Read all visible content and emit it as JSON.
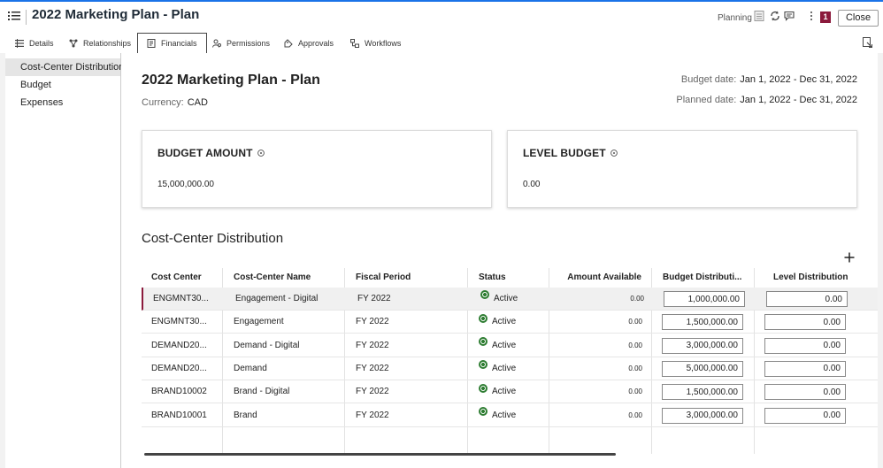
{
  "header": {
    "title": "2022 Marketing Plan - Plan",
    "planning_label": "Planning",
    "badge_count": "1",
    "close_label": "Close"
  },
  "tabs": [
    {
      "label": "Details",
      "icon": "list-icon"
    },
    {
      "label": "Relationships",
      "icon": "relationships-icon"
    },
    {
      "label": "Financials",
      "icon": "financials-icon",
      "active": true
    },
    {
      "label": "Permissions",
      "icon": "permissions-icon"
    },
    {
      "label": "Approvals",
      "icon": "approvals-icon"
    },
    {
      "label": "Workflows",
      "icon": "workflows-icon"
    }
  ],
  "sidebar": {
    "items": [
      {
        "label": "Cost-Center Distribution",
        "selected": true
      },
      {
        "label": "Budget"
      },
      {
        "label": "Expenses"
      }
    ]
  },
  "main": {
    "title": "2022 Marketing Plan - Plan",
    "currency_label": "Currency:",
    "currency_value": "CAD",
    "budget_date_label": "Budget date:",
    "budget_date_value": "Jan 1, 2022 - Dec 31, 2022",
    "planned_date_label": "Planned date:",
    "planned_date_value": "Jan 1, 2022 - Dec 31, 2022",
    "cards": [
      {
        "label": "BUDGET AMOUNT",
        "value": "15,000,000.00"
      },
      {
        "label": "LEVEL BUDGET",
        "value": "0.00"
      }
    ],
    "section_title": "Cost-Center Distribution"
  },
  "table": {
    "columns": [
      "Cost Center",
      "Cost-Center Name",
      "Fiscal Period",
      "Status",
      "Amount Available",
      "Budget Distributi...",
      "Level Distribution"
    ],
    "rows": [
      {
        "cost_center": "ENGMNT30...",
        "name": "Engagement - Digital",
        "period": "FY 2022",
        "status": "Active",
        "available": "0.00",
        "budget": "1,000,000.00",
        "level": "0.00"
      },
      {
        "cost_center": "ENGMNT30...",
        "name": "Engagement",
        "period": "FY 2022",
        "status": "Active",
        "available": "0.00",
        "budget": "1,500,000.00",
        "level": "0.00"
      },
      {
        "cost_center": "DEMAND20...",
        "name": "Demand - Digital",
        "period": "FY 2022",
        "status": "Active",
        "available": "0.00",
        "budget": "3,000,000.00",
        "level": "0.00"
      },
      {
        "cost_center": "DEMAND20...",
        "name": "Demand",
        "period": "FY 2022",
        "status": "Active",
        "available": "0.00",
        "budget": "5,000,000.00",
        "level": "0.00"
      },
      {
        "cost_center": "BRAND10002",
        "name": "Brand - Digital",
        "period": "FY 2022",
        "status": "Active",
        "available": "0.00",
        "budget": "1,500,000.00",
        "level": "0.00"
      },
      {
        "cost_center": "BRAND10001",
        "name": "Brand",
        "period": "FY 2022",
        "status": "Active",
        "available": "0.00",
        "budget": "3,000,000.00",
        "level": "0.00"
      }
    ]
  },
  "colors": {
    "accent": "#1a73e8",
    "badge": "#8b1a3c",
    "status_active": "#2e7d32"
  }
}
